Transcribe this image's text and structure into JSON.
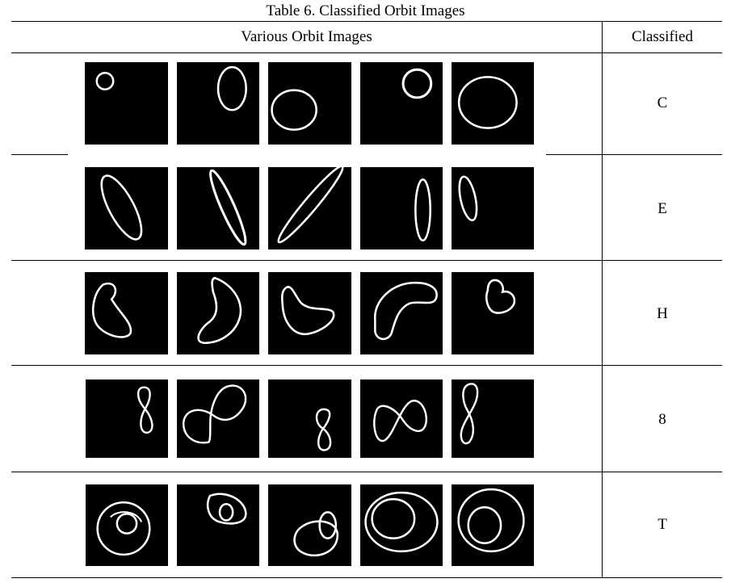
{
  "caption": "Table 6. Classified Orbit Images",
  "header": {
    "images_col": "Various Orbit Images",
    "class_col": "Classified"
  },
  "rows": [
    {
      "label": "C",
      "shape": "circle"
    },
    {
      "label": "E",
      "shape": "ellipse"
    },
    {
      "label": "H",
      "shape": "heart"
    },
    {
      "label": "8",
      "shape": "figure-eight"
    },
    {
      "label": "T",
      "shape": "tangled"
    }
  ],
  "colors": {
    "tile_background": "#000000",
    "orbit_stroke": "#ffffff"
  }
}
